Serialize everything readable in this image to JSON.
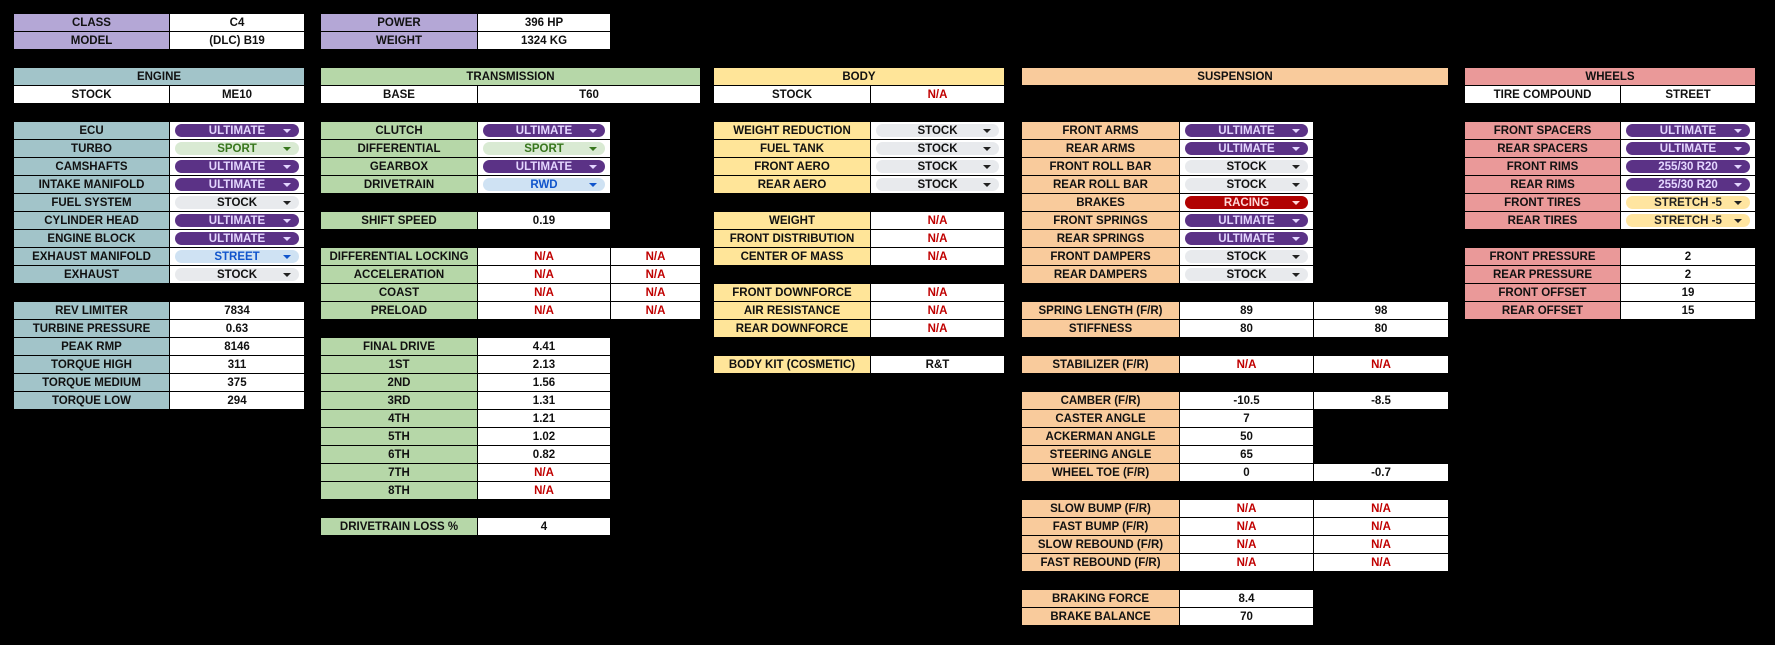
{
  "colors": {
    "summary": "#b4a7d6",
    "engine": "#a2c4c9",
    "transmission": "#b6d7a8",
    "body": "#ffe599",
    "suspension": "#f9cb9c",
    "wheels": "#ea9999",
    "na": "#c00000"
  },
  "chip_styles": {
    "ultimate": {
      "bg": "#5b3286",
      "fg": "#e4d6ff"
    },
    "sport": {
      "bg": "#d9ead3",
      "fg": "#38761d"
    },
    "street": {
      "bg": "#cfe2f3",
      "fg": "#1155cc"
    },
    "stock": {
      "bg": "#e8eaed",
      "fg": "#111111"
    },
    "racing": {
      "bg": "#b10202",
      "fg": "#ffd8d8"
    },
    "stretch": {
      "bg": "#ffe5a0",
      "fg": "#222222"
    }
  },
  "summary": {
    "left": [
      {
        "label": "CLASS",
        "values": [
          "C4"
        ]
      },
      {
        "label": "MODEL",
        "values": [
          "(DLC) B19"
        ]
      }
    ],
    "right": [
      {
        "label": "POWER",
        "values": [
          "396 HP"
        ]
      },
      {
        "label": "WEIGHT",
        "values": [
          "1324 KG"
        ]
      }
    ]
  },
  "engine": {
    "title": "ENGINE",
    "sub": [
      {
        "label": "STOCK",
        "values": [
          "ME10"
        ]
      }
    ],
    "parts": [
      {
        "label": "ECU",
        "values": [
          "ULTIMATE"
        ],
        "style": "ultimate"
      },
      {
        "label": "TURBO",
        "values": [
          "SPORT"
        ],
        "style": "sport"
      },
      {
        "label": "CAMSHAFTS",
        "values": [
          "ULTIMATE"
        ],
        "style": "ultimate"
      },
      {
        "label": "INTAKE MANIFOLD",
        "values": [
          "ULTIMATE"
        ],
        "style": "ultimate"
      },
      {
        "label": "FUEL SYSTEM",
        "values": [
          "STOCK"
        ],
        "style": "stock"
      },
      {
        "label": "CYLINDER HEAD",
        "values": [
          "ULTIMATE"
        ],
        "style": "ultimate"
      },
      {
        "label": "ENGINE BLOCK",
        "values": [
          "ULTIMATE"
        ],
        "style": "ultimate"
      },
      {
        "label": "EXHAUST MANIFOLD",
        "values": [
          "STREET"
        ],
        "style": "street"
      },
      {
        "label": "EXHAUST",
        "values": [
          "STOCK"
        ],
        "style": "stock"
      }
    ],
    "stats": [
      {
        "label": "REV LIMITER",
        "values": [
          "7834"
        ]
      },
      {
        "label": "TURBINE PRESSURE",
        "values": [
          "0.63"
        ]
      },
      {
        "label": "PEAK RMP",
        "values": [
          "8146"
        ]
      },
      {
        "label": "TORQUE HIGH",
        "values": [
          "311"
        ]
      },
      {
        "label": "TORQUE MEDIUM",
        "values": [
          "375"
        ]
      },
      {
        "label": "TORQUE LOW",
        "values": [
          "294"
        ]
      }
    ]
  },
  "transmission": {
    "title": "TRANSMISSION",
    "sub": [
      {
        "label": "BASE",
        "values": [
          "T60"
        ]
      }
    ],
    "parts": [
      {
        "label": "CLUTCH",
        "values": [
          "ULTIMATE"
        ],
        "style": "ultimate"
      },
      {
        "label": "DIFFERENTIAL",
        "values": [
          "SPORT"
        ],
        "style": "sport"
      },
      {
        "label": "GEARBOX",
        "values": [
          "ULTIMATE"
        ],
        "style": "ultimate"
      },
      {
        "label": "DRIVETRAIN",
        "values": [
          "RWD"
        ],
        "style": "street"
      }
    ],
    "shift": [
      {
        "label": "SHIFT SPEED",
        "values": [
          "0.19"
        ]
      }
    ],
    "locking": [
      {
        "label": "DIFFERENTIAL LOCKING",
        "values": [
          "N/A",
          "N/A"
        ]
      },
      {
        "label": "ACCELERATION",
        "values": [
          "N/A",
          "N/A"
        ]
      },
      {
        "label": "COAST",
        "values": [
          "N/A",
          "N/A"
        ]
      },
      {
        "label": "PRELOAD",
        "values": [
          "N/A",
          "N/A"
        ]
      }
    ],
    "gears": [
      {
        "label": "FINAL DRIVE",
        "values": [
          "4.41"
        ]
      },
      {
        "label": "1ST",
        "values": [
          "2.13"
        ]
      },
      {
        "label": "2ND",
        "values": [
          "1.56"
        ]
      },
      {
        "label": "3RD",
        "values": [
          "1.31"
        ]
      },
      {
        "label": "4TH",
        "values": [
          "1.21"
        ]
      },
      {
        "label": "5TH",
        "values": [
          "1.02"
        ]
      },
      {
        "label": "6TH",
        "values": [
          "0.82"
        ]
      },
      {
        "label": "7TH",
        "values": [
          "N/A"
        ]
      },
      {
        "label": "8TH",
        "values": [
          "N/A"
        ]
      }
    ],
    "loss": [
      {
        "label": "DRIVETRAIN LOSS %",
        "values": [
          "4"
        ]
      }
    ]
  },
  "body": {
    "title": "BODY",
    "sub": [
      {
        "label": "STOCK",
        "values": [
          "N/A"
        ]
      }
    ],
    "parts": [
      {
        "label": "WEIGHT REDUCTION",
        "values": [
          "STOCK"
        ],
        "style": "stock"
      },
      {
        "label": "FUEL TANK",
        "values": [
          "STOCK"
        ],
        "style": "stock"
      },
      {
        "label": "FRONT AERO",
        "values": [
          "STOCK"
        ],
        "style": "stock"
      },
      {
        "label": "REAR AERO",
        "values": [
          "STOCK"
        ],
        "style": "stock"
      }
    ],
    "mass": [
      {
        "label": "WEIGHT",
        "values": [
          "N/A"
        ]
      },
      {
        "label": "FRONT DISTRIBUTION",
        "values": [
          "N/A"
        ]
      },
      {
        "label": "CENTER OF MASS",
        "values": [
          "N/A"
        ]
      }
    ],
    "aero": [
      {
        "label": "FRONT DOWNFORCE",
        "values": [
          "N/A"
        ]
      },
      {
        "label": "AIR RESISTANCE",
        "values": [
          "N/A"
        ]
      },
      {
        "label": "REAR DOWNFORCE",
        "values": [
          "N/A"
        ]
      }
    ],
    "kit": [
      {
        "label": "BODY KIT (COSMETIC)",
        "values": [
          "R&T"
        ]
      }
    ]
  },
  "suspension": {
    "title": "SUSPENSION",
    "parts": [
      {
        "label": "FRONT ARMS",
        "values": [
          "ULTIMATE"
        ],
        "style": "ultimate"
      },
      {
        "label": "REAR ARMS",
        "values": [
          "ULTIMATE"
        ],
        "style": "ultimate"
      },
      {
        "label": "FRONT ROLL BAR",
        "values": [
          "STOCK"
        ],
        "style": "stock"
      },
      {
        "label": "REAR ROLL BAR",
        "values": [
          "STOCK"
        ],
        "style": "stock"
      },
      {
        "label": "BRAKES",
        "values": [
          "RACING"
        ],
        "style": "racing"
      },
      {
        "label": "FRONT SPRINGS",
        "values": [
          "ULTIMATE"
        ],
        "style": "ultimate"
      },
      {
        "label": "REAR SPRINGS",
        "values": [
          "ULTIMATE"
        ],
        "style": "ultimate"
      },
      {
        "label": "FRONT DAMPERS",
        "values": [
          "STOCK"
        ],
        "style": "stock"
      },
      {
        "label": "REAR DAMPERS",
        "values": [
          "STOCK"
        ],
        "style": "stock"
      }
    ],
    "springs": [
      {
        "label": "SPRING LENGTH (F/R)",
        "values": [
          "89",
          "98"
        ]
      },
      {
        "label": "STIFFNESS",
        "values": [
          "80",
          "80"
        ]
      }
    ],
    "stabilizer": [
      {
        "label": "STABILIZER (F/R)",
        "values": [
          "N/A",
          "N/A"
        ]
      }
    ],
    "geometry": [
      {
        "label": "CAMBER (F/R)",
        "values": [
          "-10.5",
          "-8.5"
        ]
      },
      {
        "label": "CASTER ANGLE",
        "values": [
          "7"
        ]
      },
      {
        "label": "ACKERMAN ANGLE",
        "values": [
          "50"
        ]
      },
      {
        "label": "STEERING ANGLE",
        "values": [
          "65"
        ]
      },
      {
        "label": "WHEEL TOE (F/R)",
        "values": [
          "0",
          "-0.7"
        ]
      }
    ],
    "damping": [
      {
        "label": "SLOW BUMP (F/R)",
        "values": [
          "N/A",
          "N/A"
        ]
      },
      {
        "label": "FAST BUMP (F/R)",
        "values": [
          "N/A",
          "N/A"
        ]
      },
      {
        "label": "SLOW REBOUND (F/R)",
        "values": [
          "N/A",
          "N/A"
        ]
      },
      {
        "label": "FAST REBOUND (F/R)",
        "values": [
          "N/A",
          "N/A"
        ]
      }
    ],
    "brakes": [
      {
        "label": "BRAKING FORCE",
        "values": [
          "8.4"
        ]
      },
      {
        "label": "BRAKE BALANCE",
        "values": [
          "70"
        ]
      }
    ]
  },
  "wheels": {
    "title": "WHEELS",
    "sub": [
      {
        "label": "TIRE COMPOUND",
        "values": [
          "STREET"
        ]
      }
    ],
    "parts": [
      {
        "label": "FRONT SPACERS",
        "values": [
          "ULTIMATE"
        ],
        "style": "ultimate"
      },
      {
        "label": "REAR SPACERS",
        "values": [
          "ULTIMATE"
        ],
        "style": "ultimate"
      },
      {
        "label": "FRONT RIMS",
        "values": [
          "255/30 R20"
        ],
        "style": "ultimate"
      },
      {
        "label": "REAR RIMS",
        "values": [
          "255/30 R20"
        ],
        "style": "ultimate"
      },
      {
        "label": "FRONT TIRES",
        "values": [
          "STRETCH -5"
        ],
        "style": "stretch"
      },
      {
        "label": "REAR TIRES",
        "values": [
          "STRETCH -5"
        ],
        "style": "stretch"
      }
    ],
    "pressure": [
      {
        "label": "FRONT PRESSURE",
        "values": [
          "2"
        ]
      },
      {
        "label": "REAR PRESSURE",
        "values": [
          "2"
        ]
      },
      {
        "label": "FRONT OFFSET",
        "values": [
          "19"
        ]
      },
      {
        "label": "REAR OFFSET",
        "values": [
          "15"
        ]
      }
    ]
  }
}
